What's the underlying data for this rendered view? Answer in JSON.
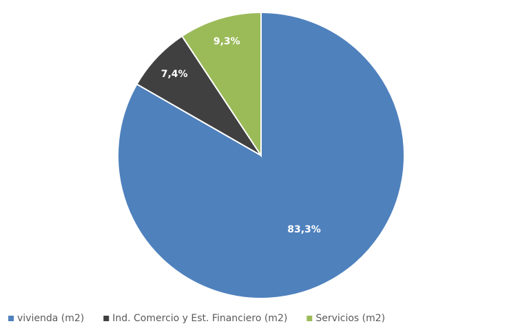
{
  "chart_data": {
    "type": "pie",
    "categories": [
      "vivienda (m2)",
      "Ind. Comercio y Est. Financiero (m2)",
      "Servicios (m2)"
    ],
    "values": [
      83.3,
      7.4,
      9.3
    ],
    "value_labels": [
      "83,3%",
      "7,4%",
      "9,3%"
    ],
    "colors": [
      "#4f81bd",
      "#404040",
      "#9bbb59"
    ],
    "legend": "bottom"
  }
}
